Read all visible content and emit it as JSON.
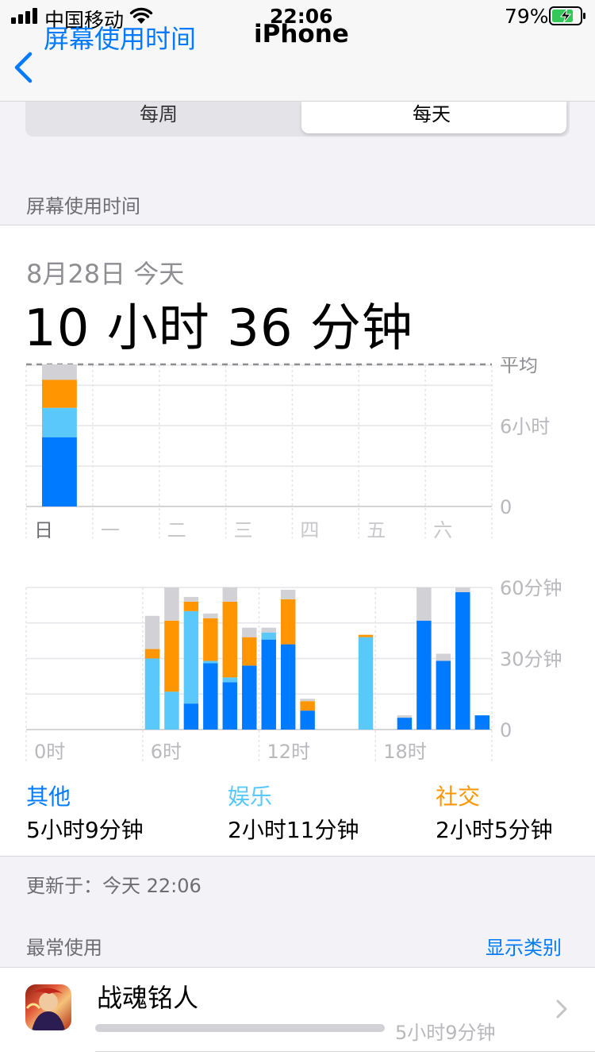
{
  "status_bar": {
    "carrier": "中国移动",
    "time": "22:06",
    "battery": "79%"
  },
  "nav": {
    "back_label": "屏幕使用时间",
    "title": "iPhone"
  },
  "segmented": {
    "options": [
      "每周",
      "每天"
    ],
    "selected": "每天"
  },
  "section_screen_time": "屏幕使用时间",
  "summary": {
    "date": "8月28日 今天",
    "total": "10 小时 36 分钟"
  },
  "colors": {
    "other": "#007aff",
    "entertainment": "#5ac8fa",
    "social": "#ff9500",
    "uncategorized": "#d1d1d6",
    "accent": "#007aff"
  },
  "chart_data": [
    {
      "type": "bar",
      "stacked": true,
      "categories": [
        "日",
        "一",
        "二",
        "三",
        "四",
        "五",
        "六"
      ],
      "y_tick_labels": [
        "0",
        "6小时"
      ],
      "average_label": "平均",
      "ylim_hours": [
        0,
        10.5
      ],
      "series": [
        {
          "name": "其他",
          "values": [
            5.15,
            0,
            0,
            0,
            0,
            0,
            0
          ]
        },
        {
          "name": "娱乐",
          "values": [
            2.18,
            0,
            0,
            0,
            0,
            0,
            0
          ]
        },
        {
          "name": "社交",
          "values": [
            2.08,
            0,
            0,
            0,
            0,
            0,
            0
          ]
        },
        {
          "values": [
            1.15,
            0,
            0,
            0,
            0,
            0,
            0
          ]
        }
      ]
    },
    {
      "type": "bar",
      "stacked": true,
      "hours": [
        0,
        1,
        2,
        3,
        4,
        5,
        6,
        7,
        8,
        9,
        10,
        11,
        12,
        13,
        14,
        15,
        16,
        17,
        18,
        19,
        20,
        21,
        22,
        23
      ],
      "x_tick_labels": [
        "0时",
        "6时",
        "12时",
        "18时"
      ],
      "y_tick_labels": [
        "0",
        "30分钟",
        "60分钟"
      ],
      "ylim_minutes": [
        0,
        60
      ],
      "series": [
        {
          "name": "其他",
          "values": [
            0,
            0,
            0,
            0,
            0,
            0,
            0,
            0,
            11,
            28,
            20,
            27,
            38,
            36,
            8,
            0,
            0,
            0,
            0,
            5,
            46,
            29,
            58,
            6
          ]
        },
        {
          "name": "娱乐",
          "values": [
            0,
            0,
            0,
            0,
            0,
            0,
            30,
            16,
            39,
            1,
            2,
            0,
            3,
            0,
            0,
            0,
            0,
            39,
            0,
            0,
            0,
            0,
            0,
            0
          ]
        },
        {
          "name": "社交",
          "values": [
            0,
            0,
            0,
            0,
            0,
            0,
            4,
            30,
            4,
            18,
            32,
            12,
            0,
            19,
            4,
            0,
            0,
            1,
            0,
            0,
            0,
            0,
            0,
            0
          ]
        },
        {
          "values": [
            0,
            0,
            0,
            0,
            0,
            0,
            14,
            14,
            2,
            2,
            6,
            4,
            2,
            4,
            1,
            0,
            0,
            0,
            0,
            1,
            14,
            3,
            2,
            0
          ]
        }
      ]
    }
  ],
  "categories_summary": [
    {
      "label": "其他",
      "value": "5小时9分钟"
    },
    {
      "label": "娱乐",
      "value": "2小时11分钟"
    },
    {
      "label": "社交",
      "value": "2小时5分钟"
    }
  ],
  "updated": "更新于：今天 22:06",
  "most_used": {
    "header": "最常使用",
    "show_categories": "显示类别"
  },
  "apps": [
    {
      "name": "战魂铭人",
      "time": "5小时9分钟",
      "fraction": 1.0
    }
  ]
}
